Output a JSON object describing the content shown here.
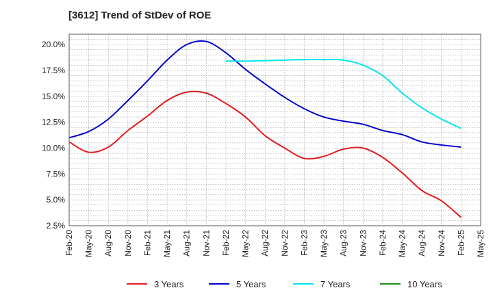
{
  "chart_data": {
    "type": "line",
    "title": "[3612]  Trend of StDev of ROE",
    "xlabel": "",
    "ylabel": "",
    "x_ticks": [
      "Feb-20",
      "May-20",
      "Aug-20",
      "Nov-20",
      "Feb-21",
      "May-21",
      "Aug-21",
      "Nov-21",
      "Feb-22",
      "May-22",
      "Aug-22",
      "Nov-22",
      "Feb-23",
      "May-23",
      "Aug-23",
      "Nov-23",
      "Feb-24",
      "May-24",
      "Aug-24",
      "Nov-24",
      "Feb-25",
      "May-25"
    ],
    "y_ticks": [
      "2.5%",
      "5.0%",
      "7.5%",
      "10.0%",
      "12.5%",
      "15.0%",
      "17.5%",
      "20.0%"
    ],
    "ylim": [
      2.5,
      21.0
    ],
    "grid": true,
    "legend_position": "bottom",
    "series": [
      {
        "name": "3 Years",
        "color": "#e31a1c",
        "points": [
          [
            0,
            10.6
          ],
          [
            1,
            9.6
          ],
          [
            2,
            10.1
          ],
          [
            3,
            11.7
          ],
          [
            4,
            13.1
          ],
          [
            5,
            14.6
          ],
          [
            6,
            15.4
          ],
          [
            7,
            15.3
          ],
          [
            8,
            14.3
          ],
          [
            9,
            13.0
          ],
          [
            10,
            11.2
          ],
          [
            11,
            10.0
          ],
          [
            12,
            9.0
          ],
          [
            13,
            9.2
          ],
          [
            14,
            9.9
          ],
          [
            15,
            10.0
          ],
          [
            16,
            9.1
          ],
          [
            17,
            7.6
          ],
          [
            18,
            5.9
          ],
          [
            19,
            4.9
          ],
          [
            20,
            3.3
          ]
        ]
      },
      {
        "name": "5 Years",
        "color": "#0000cc",
        "points": [
          [
            0,
            11.0
          ],
          [
            1,
            11.6
          ],
          [
            2,
            12.8
          ],
          [
            3,
            14.6
          ],
          [
            4,
            16.5
          ],
          [
            5,
            18.5
          ],
          [
            6,
            20.0
          ],
          [
            7,
            20.3
          ],
          [
            8,
            19.2
          ],
          [
            9,
            17.6
          ],
          [
            10,
            16.2
          ],
          [
            11,
            14.9
          ],
          [
            12,
            13.8
          ],
          [
            13,
            13.0
          ],
          [
            14,
            12.6
          ],
          [
            15,
            12.3
          ],
          [
            16,
            11.7
          ],
          [
            17,
            11.3
          ],
          [
            18,
            10.6
          ],
          [
            19,
            10.3
          ],
          [
            20,
            10.1
          ]
        ]
      },
      {
        "name": "7 Years",
        "color": "#00e5ee",
        "points": [
          [
            8,
            18.4
          ],
          [
            9,
            18.4
          ],
          [
            10,
            18.45
          ],
          [
            11,
            18.5
          ],
          [
            12,
            18.55
          ],
          [
            13,
            18.55
          ],
          [
            14,
            18.5
          ],
          [
            15,
            18.0
          ],
          [
            16,
            17.0
          ],
          [
            17,
            15.3
          ],
          [
            18,
            13.9
          ],
          [
            19,
            12.8
          ],
          [
            20,
            11.9
          ]
        ]
      },
      {
        "name": "10 Years",
        "color": "#1a8a1a",
        "points": []
      }
    ]
  }
}
